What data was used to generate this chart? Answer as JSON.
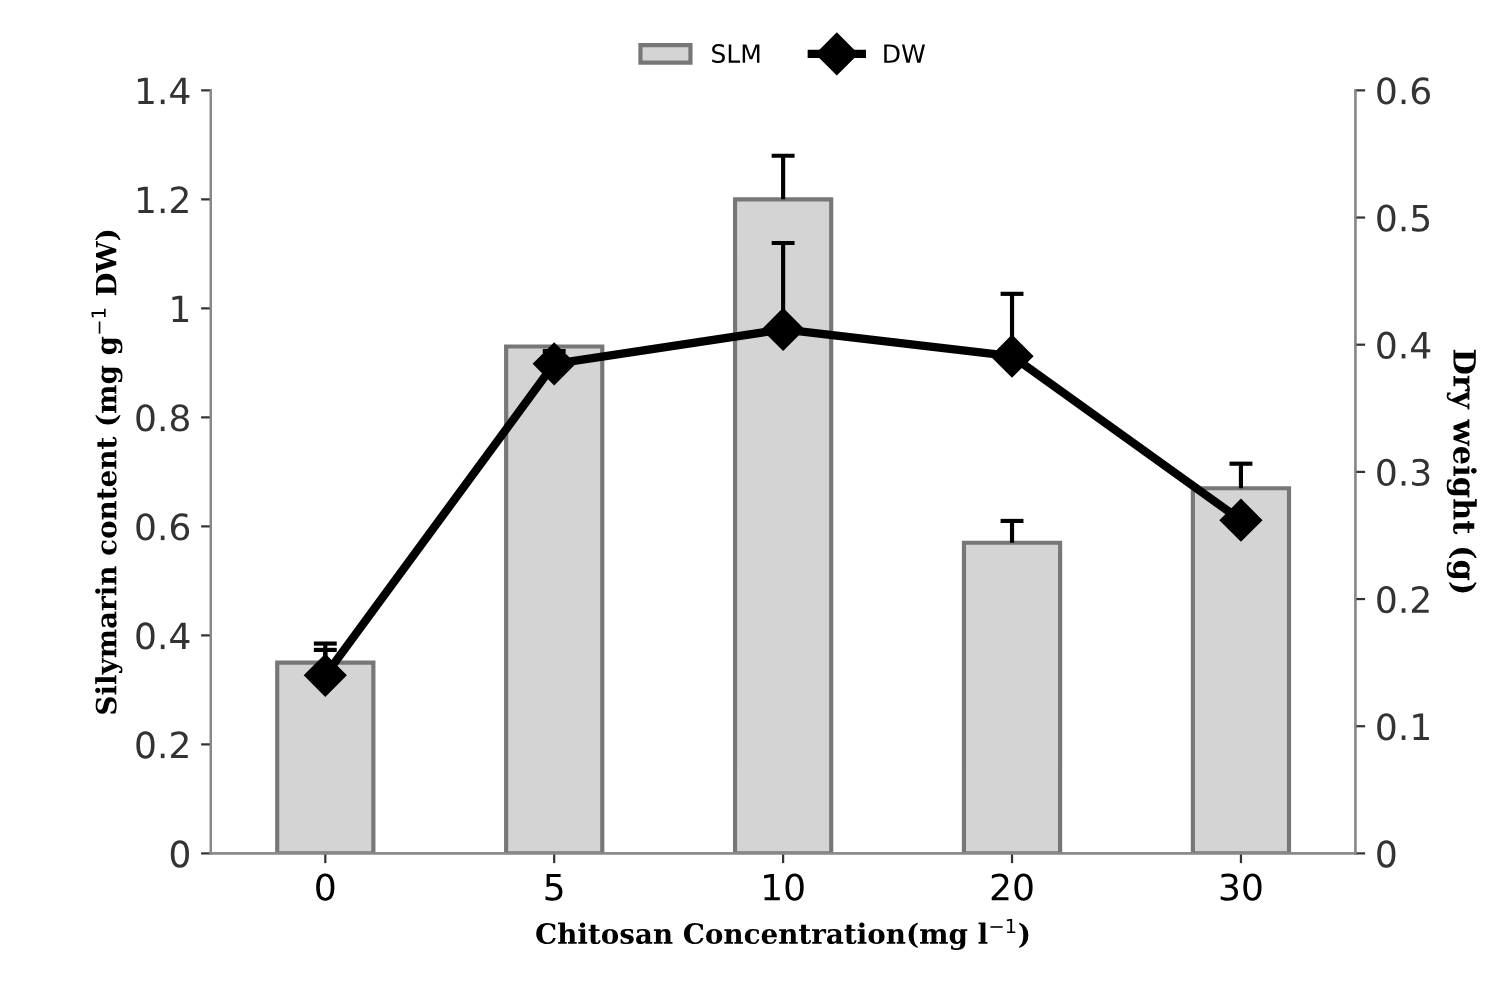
{
  "chart_data": {
    "type": "bar",
    "categories": [
      "0",
      "5",
      "10",
      "20",
      "30"
    ],
    "xlabel": "Chitosan Concentration(mg l$^{−1}$)",
    "ylabel": "Silymarin content (mg g$^{−1}$ DW)",
    "y2label": "Dry weight (g)",
    "series": [
      {
        "name": "SLM",
        "color": "#d4d4d4",
        "values": [
          0.35,
          0.93,
          1.2,
          0.57,
          0.67
        ],
        "errors": [
          [
            0.35,
            0.385
          ],
          null,
          [
            1.2,
            1.28
          ],
          [
            0.57,
            0.61
          ],
          [
            0.67,
            0.715
          ]
        ]
      },
      {
        "name": "DW",
        "type": "line",
        "axis": "y2",
        "color": "#000000",
        "values": [
          0.14,
          0.385,
          0.412,
          0.391,
          0.262
        ],
        "errors": [
          [
            0.14,
            0.16
          ],
          [
            0.385,
            0.395
          ],
          [
            0.412,
            0.48
          ],
          [
            0.391,
            0.44
          ],
          null
        ]
      }
    ],
    "ylim": [
      0,
      1.4
    ],
    "yticks": [
      0,
      0.2,
      0.4,
      0.6,
      0.8,
      1,
      1.2,
      1.4
    ],
    "y2lim": [
      0,
      0.6
    ],
    "y2ticks": [
      0,
      0.1,
      0.2,
      0.3,
      0.4,
      0.5,
      0.6
    ],
    "legend": "top",
    "marker": "diamond",
    "line_style": "solid",
    "grid": false
  }
}
